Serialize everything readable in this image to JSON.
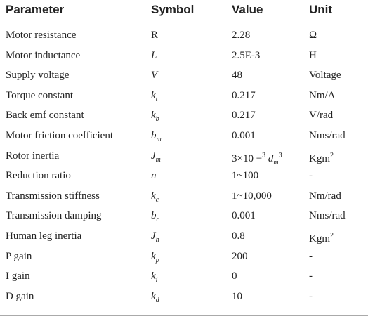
{
  "table": {
    "header": [
      "Parameter",
      "Symbol",
      "Value",
      "Unit"
    ],
    "rows": [
      {
        "parameter": "Motor resistance",
        "symbol": [
          {
            "text": "R"
          }
        ],
        "value": [
          {
            "text": "2.28"
          }
        ],
        "unit": [
          {
            "text": "Ω"
          }
        ]
      },
      {
        "parameter": "Motor inductance",
        "symbol": [
          {
            "text": "L",
            "italic": true
          }
        ],
        "value": [
          {
            "text": "2.5E-3"
          }
        ],
        "unit": [
          {
            "text": "H"
          }
        ]
      },
      {
        "parameter": "Supply voltage",
        "symbol": [
          {
            "text": "V",
            "italic": true
          }
        ],
        "value": [
          {
            "text": "48"
          }
        ],
        "unit": [
          {
            "text": "Voltage"
          }
        ]
      },
      {
        "parameter": "Torque constant",
        "symbol": [
          {
            "text": "k",
            "italic": true
          },
          {
            "text": "t",
            "italic": true,
            "pos": "sub"
          }
        ],
        "value": [
          {
            "text": "0.217"
          }
        ],
        "unit": [
          {
            "text": "Nm/A"
          }
        ]
      },
      {
        "parameter": "Back emf constant",
        "symbol": [
          {
            "text": "k",
            "italic": true
          },
          {
            "text": "b",
            "italic": true,
            "pos": "sub"
          }
        ],
        "value": [
          {
            "text": "0.217"
          }
        ],
        "unit": [
          {
            "text": "V/rad"
          }
        ]
      },
      {
        "parameter": "Motor friction coefficient",
        "symbol": [
          {
            "text": "b",
            "italic": true
          },
          {
            "text": "m",
            "italic": true,
            "pos": "sub"
          }
        ],
        "value": [
          {
            "text": "0.001"
          }
        ],
        "unit": [
          {
            "text": "Nms/rad"
          }
        ]
      },
      {
        "parameter": "Rotor inertia",
        "symbol": [
          {
            "text": "J",
            "italic": true
          },
          {
            "text": "m",
            "italic": true,
            "pos": "sub"
          }
        ],
        "value": [
          {
            "text": "3×10 −"
          },
          {
            "text": "3",
            "pos": "sup"
          },
          {
            "text": " d",
            "italic": true
          },
          {
            "text": "m",
            "italic": true,
            "pos": "sub"
          },
          {
            "text": "3",
            "pos": "sup"
          }
        ],
        "unit": [
          {
            "text": "Kgm"
          },
          {
            "text": "2",
            "pos": "sup"
          }
        ]
      },
      {
        "parameter": "Reduction ratio",
        "symbol": [
          {
            "text": "n",
            "italic": true
          }
        ],
        "value": [
          {
            "text": "1~100"
          }
        ],
        "unit": [
          {
            "text": "-"
          }
        ]
      },
      {
        "parameter": "Transmission stiffness",
        "symbol": [
          {
            "text": "k",
            "italic": true
          },
          {
            "text": "c",
            "italic": true,
            "pos": "sub"
          }
        ],
        "value": [
          {
            "text": "1~10,000"
          }
        ],
        "unit": [
          {
            "text": "Nm/rad"
          }
        ]
      },
      {
        "parameter": "Transmission damping",
        "symbol": [
          {
            "text": "b",
            "italic": true
          },
          {
            "text": "c",
            "italic": true,
            "pos": "sub"
          }
        ],
        "value": [
          {
            "text": "0.001"
          }
        ],
        "unit": [
          {
            "text": "Nms/rad"
          }
        ]
      },
      {
        "parameter": "Human leg inertia",
        "symbol": [
          {
            "text": "J",
            "italic": true
          },
          {
            "text": "h",
            "italic": true,
            "pos": "sub"
          }
        ],
        "value": [
          {
            "text": "0.8"
          }
        ],
        "unit": [
          {
            "text": "Kgm"
          },
          {
            "text": "2",
            "pos": "sup"
          }
        ]
      },
      {
        "parameter": "P gain",
        "symbol": [
          {
            "text": "k",
            "italic": true
          },
          {
            "text": "p",
            "italic": true,
            "pos": "sub"
          }
        ],
        "value": [
          {
            "text": "200"
          }
        ],
        "unit": [
          {
            "text": "-"
          }
        ]
      },
      {
        "parameter": "I gain",
        "symbol": [
          {
            "text": "k",
            "italic": true
          },
          {
            "text": "i",
            "italic": true,
            "pos": "sub"
          }
        ],
        "value": [
          {
            "text": "0"
          }
        ],
        "unit": [
          {
            "text": "-"
          }
        ]
      },
      {
        "parameter": "D gain",
        "symbol": [
          {
            "text": "k",
            "italic": true
          },
          {
            "text": "d",
            "italic": true,
            "pos": "sub"
          }
        ],
        "value": [
          {
            "text": "10"
          }
        ],
        "unit": [
          {
            "text": "-"
          }
        ]
      }
    ]
  }
}
